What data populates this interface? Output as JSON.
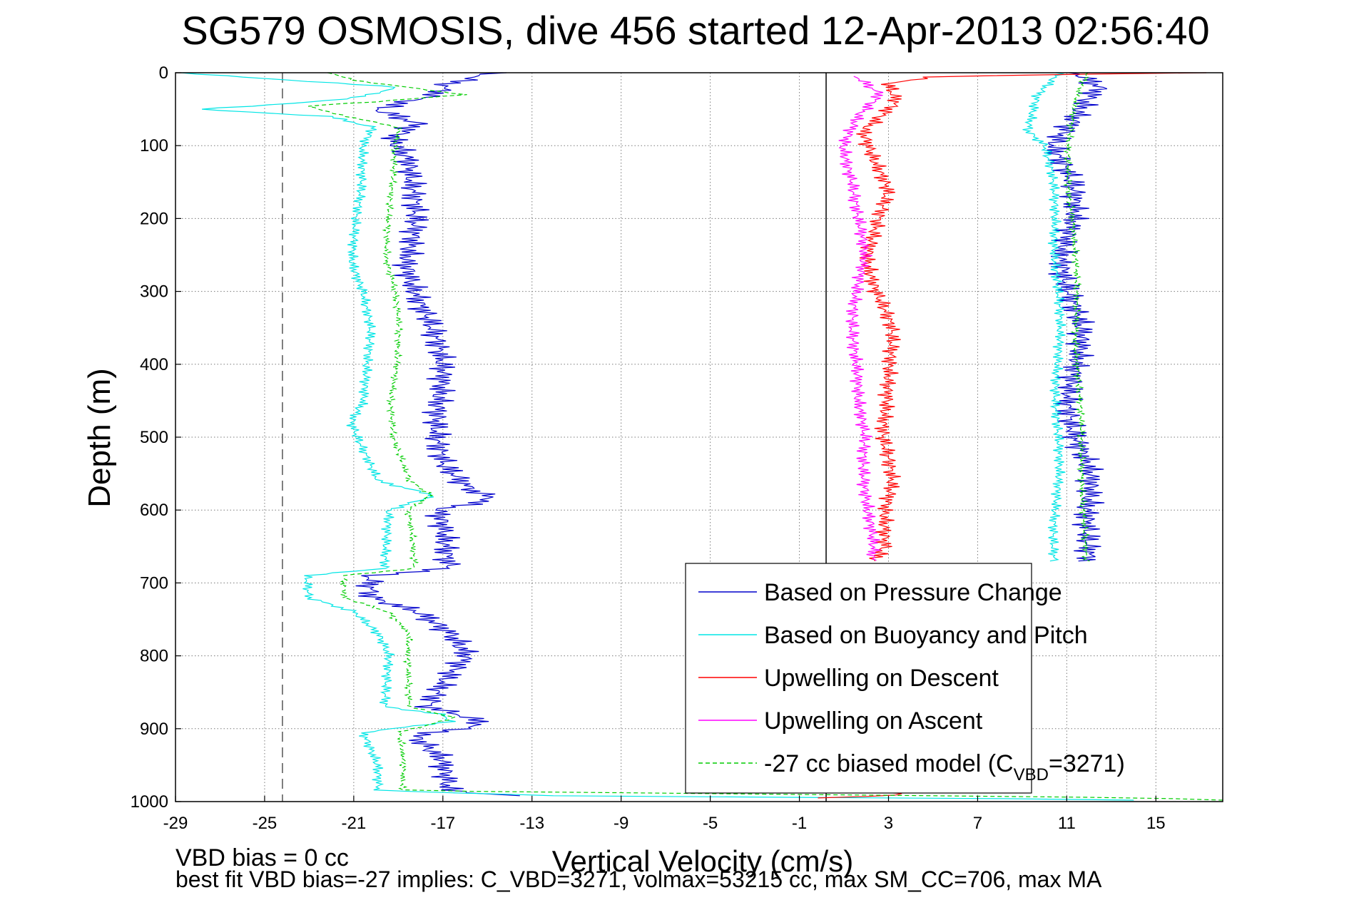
{
  "chart_data": {
    "type": "line",
    "title": "SG579 OSMOSIS, dive 456 started 12-Apr-2013 02:56:40",
    "xlabel": "Vertical Velocity (cm/s)",
    "ylabel": "Depth (m)",
    "xlim": [
      -29,
      18
    ],
    "ylim": [
      0,
      1000
    ],
    "y_reversed": true,
    "grid": true,
    "x_ticks": [
      "-29",
      "-25",
      "-21",
      "-17",
      "-13",
      "-9",
      "-5",
      "-1",
      "3",
      "7",
      "11",
      "15"
    ],
    "y_ticks": [
      "0",
      "100",
      "200",
      "300",
      "400",
      "500",
      "600",
      "700",
      "800",
      "900",
      "1000"
    ],
    "reference_lines": [
      {
        "orientation": "vertical",
        "x": -24.2,
        "style": "dashed",
        "color": "#555555"
      },
      {
        "orientation": "vertical",
        "x": 0.2,
        "style": "solid",
        "color": "#000000"
      }
    ],
    "legend_position": "bottom-right",
    "legend": [
      {
        "label": "Based on Pressure Change",
        "color": "#0000cc",
        "style": "solid"
      },
      {
        "label": "Based on Buoyancy and Pitch",
        "color": "#00e5e5",
        "style": "solid"
      },
      {
        "label": "Upwelling on Descent",
        "color": "#ff0000",
        "style": "solid"
      },
      {
        "label": "Upwelling on Ascent",
        "color": "#ff00ff",
        "style": "solid"
      },
      {
        "label_prefix": "-27 cc biased model (C",
        "label_sub": "VBD",
        "label_suffix": "=3271)",
        "color": "#00cc00",
        "style": "dashed"
      }
    ],
    "series": [
      {
        "legend_index": 0,
        "color": "#0000cc",
        "dashed": false,
        "noise": 0.9,
        "profiles": [
          [
            [
              0,
              -15
            ],
            [
              15,
              -17
            ],
            [
              30,
              -17.5
            ],
            [
              50,
              -20
            ],
            [
              70,
              -18
            ],
            [
              90,
              -19
            ],
            [
              120,
              -18.3
            ],
            [
              160,
              -18.4
            ],
            [
              200,
              -18.5
            ],
            [
              260,
              -18.6
            ],
            [
              300,
              -18
            ],
            [
              340,
              -17.5
            ],
            [
              400,
              -17.3
            ],
            [
              450,
              -17.2
            ],
            [
              500,
              -17
            ],
            [
              540,
              -16.8
            ],
            [
              570,
              -16
            ],
            [
              585,
              -15
            ],
            [
              600,
              -17.5
            ],
            [
              640,
              -17
            ],
            [
              680,
              -16.5
            ],
            [
              690,
              -20
            ],
            [
              720,
              -20
            ],
            [
              740,
              -18
            ],
            [
              770,
              -16.8
            ],
            [
              800,
              -16.2
            ],
            [
              830,
              -17
            ],
            [
              870,
              -17.5
            ],
            [
              885,
              -15.5
            ],
            [
              895,
              -15
            ],
            [
              910,
              -18
            ],
            [
              940,
              -17
            ],
            [
              985,
              -17
            ],
            [
              992,
              -14
            ]
          ],
          [
            [
              0,
              11.3
            ],
            [
              20,
              12.5
            ],
            [
              40,
              12
            ],
            [
              70,
              11.5
            ],
            [
              100,
              10.5
            ],
            [
              150,
              11
            ],
            [
              200,
              11.2
            ],
            [
              250,
              11
            ],
            [
              300,
              11.2
            ],
            [
              350,
              11.4
            ],
            [
              400,
              11.3
            ],
            [
              450,
              11.3
            ],
            [
              500,
              11.5
            ],
            [
              550,
              11.8
            ],
            [
              600,
              11.8
            ],
            [
              650,
              12.2
            ],
            [
              670,
              12.3
            ]
          ]
        ]
      },
      {
        "legend_index": 1,
        "color": "#00e5e5",
        "dashed": false,
        "noise": 0.35,
        "profiles": [
          [
            [
              0,
              -29
            ],
            [
              8,
              -25
            ],
            [
              20,
              -19
            ],
            [
              35,
              -21
            ],
            [
              45,
              -25
            ],
            [
              50,
              -28
            ],
            [
              60,
              -22
            ],
            [
              75,
              -20
            ],
            [
              100,
              -20.5
            ],
            [
              150,
              -20.7
            ],
            [
              200,
              -21
            ],
            [
              260,
              -21
            ],
            [
              300,
              -20.5
            ],
            [
              350,
              -20.3
            ],
            [
              400,
              -20.5
            ],
            [
              450,
              -20.5
            ],
            [
              480,
              -21
            ],
            [
              520,
              -20.5
            ],
            [
              560,
              -20
            ],
            [
              580,
              -17.5
            ],
            [
              600,
              -19.5
            ],
            [
              640,
              -19.5
            ],
            [
              680,
              -19.5
            ],
            [
              690,
              -23
            ],
            [
              720,
              -23
            ],
            [
              740,
              -21
            ],
            [
              770,
              -20
            ],
            [
              800,
              -19.5
            ],
            [
              840,
              -19.5
            ],
            [
              870,
              -19.5
            ],
            [
              880,
              -17
            ],
            [
              890,
              -16.5
            ],
            [
              905,
              -20.5
            ],
            [
              950,
              -20
            ],
            [
              985,
              -20
            ],
            [
              992,
              -12
            ],
            [
              996,
              8
            ],
            [
              998,
              14
            ]
          ],
          [
            [
              0,
              10.7
            ],
            [
              30,
              9.8
            ],
            [
              60,
              9.5
            ],
            [
              80,
              9.3
            ],
            [
              100,
              10
            ],
            [
              150,
              10.3
            ],
            [
              200,
              10.5
            ],
            [
              300,
              10.6
            ],
            [
              400,
              10.6
            ],
            [
              500,
              10.6
            ],
            [
              600,
              10.5
            ],
            [
              670,
              10.5
            ]
          ]
        ]
      },
      {
        "legend_index": 2,
        "color": "#ff0000",
        "dashed": false,
        "noise": 0.55,
        "profiles": [
          [
            [
              0,
              17
            ],
            [
              5,
              5
            ],
            [
              15,
              3
            ],
            [
              40,
              3.5
            ],
            [
              55,
              3
            ],
            [
              80,
              2
            ],
            [
              120,
              2.3
            ],
            [
              160,
              2.8
            ],
            [
              200,
              2.5
            ],
            [
              260,
              2.2
            ],
            [
              300,
              2.5
            ],
            [
              350,
              3
            ],
            [
              400,
              3
            ],
            [
              450,
              3.1
            ],
            [
              500,
              2.8
            ],
            [
              560,
              3
            ],
            [
              600,
              2.8
            ],
            [
              650,
              3
            ],
            [
              670,
              2.5
            ]
          ],
          [
            [
              985,
              1.5
            ],
            [
              990,
              4
            ],
            [
              995,
              0
            ]
          ]
        ]
      },
      {
        "legend_index": 3,
        "color": "#ff00ff",
        "dashed": false,
        "noise": 0.45,
        "profiles": [
          [
            [
              5,
              1.5
            ],
            [
              30,
              2.5
            ],
            [
              60,
              1.5
            ],
            [
              100,
              1
            ],
            [
              150,
              1.5
            ],
            [
              200,
              1.6
            ],
            [
              250,
              1.8
            ],
            [
              300,
              1.6
            ],
            [
              350,
              1.5
            ],
            [
              400,
              1.5
            ],
            [
              450,
              1.5
            ],
            [
              500,
              2
            ],
            [
              550,
              2
            ],
            [
              600,
              2
            ],
            [
              650,
              2.2
            ],
            [
              670,
              2.2
            ]
          ]
        ]
      },
      {
        "legend_index": 4,
        "color": "#00cc00",
        "dashed": true,
        "noise": 0.22,
        "profiles": [
          [
            [
              0,
              -22
            ],
            [
              10,
              -21
            ],
            [
              30,
              -16
            ],
            [
              40,
              -20
            ],
            [
              45,
              -23
            ],
            [
              55,
              -22
            ],
            [
              75,
              -19
            ],
            [
              100,
              -19.2
            ],
            [
              150,
              -19.3
            ],
            [
              200,
              -19.4
            ],
            [
              260,
              -19.5
            ],
            [
              300,
              -19.2
            ],
            [
              350,
              -19
            ],
            [
              400,
              -19
            ],
            [
              450,
              -19.3
            ],
            [
              500,
              -19.3
            ],
            [
              540,
              -18.8
            ],
            [
              560,
              -18.5
            ],
            [
              580,
              -17.5
            ],
            [
              600,
              -18.5
            ],
            [
              640,
              -18.3
            ],
            [
              680,
              -18.3
            ],
            [
              690,
              -21.5
            ],
            [
              720,
              -21.5
            ],
            [
              740,
              -19.5
            ],
            [
              770,
              -18.5
            ],
            [
              800,
              -18.5
            ],
            [
              840,
              -18.5
            ],
            [
              870,
              -18.5
            ],
            [
              885,
              -16.5
            ],
            [
              905,
              -19
            ],
            [
              950,
              -18.8
            ],
            [
              985,
              -18.8
            ],
            [
              992,
              5
            ],
            [
              995,
              15
            ],
            [
              998,
              18
            ]
          ],
          [
            [
              0,
              12
            ],
            [
              30,
              11.5
            ],
            [
              60,
              11.2
            ],
            [
              100,
              11
            ],
            [
              150,
              11.1
            ],
            [
              200,
              11.3
            ],
            [
              300,
              11.4
            ],
            [
              400,
              11.5
            ],
            [
              500,
              11.6
            ],
            [
              600,
              11.8
            ],
            [
              670,
              11.8
            ]
          ]
        ]
      }
    ]
  },
  "annotations": {
    "bias_line": "VBD bias = 0 cc",
    "best_fit_line": "best fit VBD bias=-27 implies: C_VBD=3271, volmax=53215 cc, max SM_CC=706, max MA"
  }
}
